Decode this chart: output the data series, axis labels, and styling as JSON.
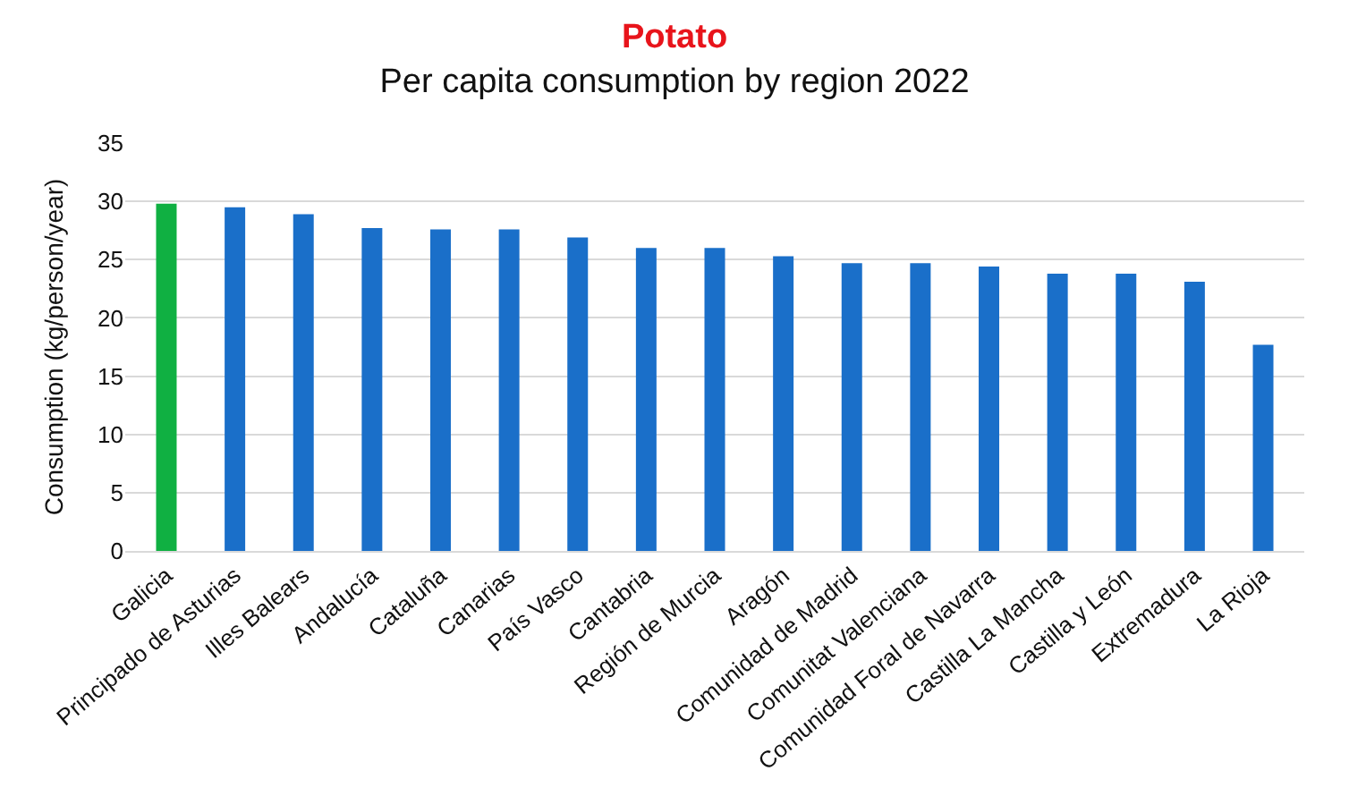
{
  "chart_data": {
    "type": "bar",
    "title": "Potato",
    "subtitle": "Per capita consumption by region 2022",
    "ylabel": "Consumption (kg/person/year)",
    "categories": [
      "Galicia",
      "Principado de Asturias",
      "Illes Balears",
      "Andalucía",
      "Cataluña",
      "Canarias",
      "País Vasco",
      "Cantabria",
      "Región de Murcia",
      "Aragón",
      "Comunidad de Madrid",
      "Comunitat Valenciana",
      "Comunidad Foral de Navarra",
      "Castilla La Mancha",
      "Castilla y León",
      "Extremadura",
      "La Rioja"
    ],
    "values": [
      29.8,
      29.5,
      28.9,
      27.7,
      27.6,
      27.6,
      26.9,
      26.0,
      26.0,
      25.3,
      24.7,
      24.7,
      24.4,
      23.8,
      23.8,
      23.1,
      17.7
    ],
    "colors": [
      "#10b042",
      "#1a6fc9",
      "#1a6fc9",
      "#1a6fc9",
      "#1a6fc9",
      "#1a6fc9",
      "#1a6fc9",
      "#1a6fc9",
      "#1a6fc9",
      "#1a6fc9",
      "#1a6fc9",
      "#1a6fc9",
      "#1a6fc9",
      "#1a6fc9",
      "#1a6fc9",
      "#1a6fc9",
      "#1a6fc9"
    ],
    "ylim": [
      0,
      35
    ],
    "yticks": [
      0,
      5,
      10,
      15,
      20,
      25,
      30,
      35
    ],
    "grid": "y"
  }
}
